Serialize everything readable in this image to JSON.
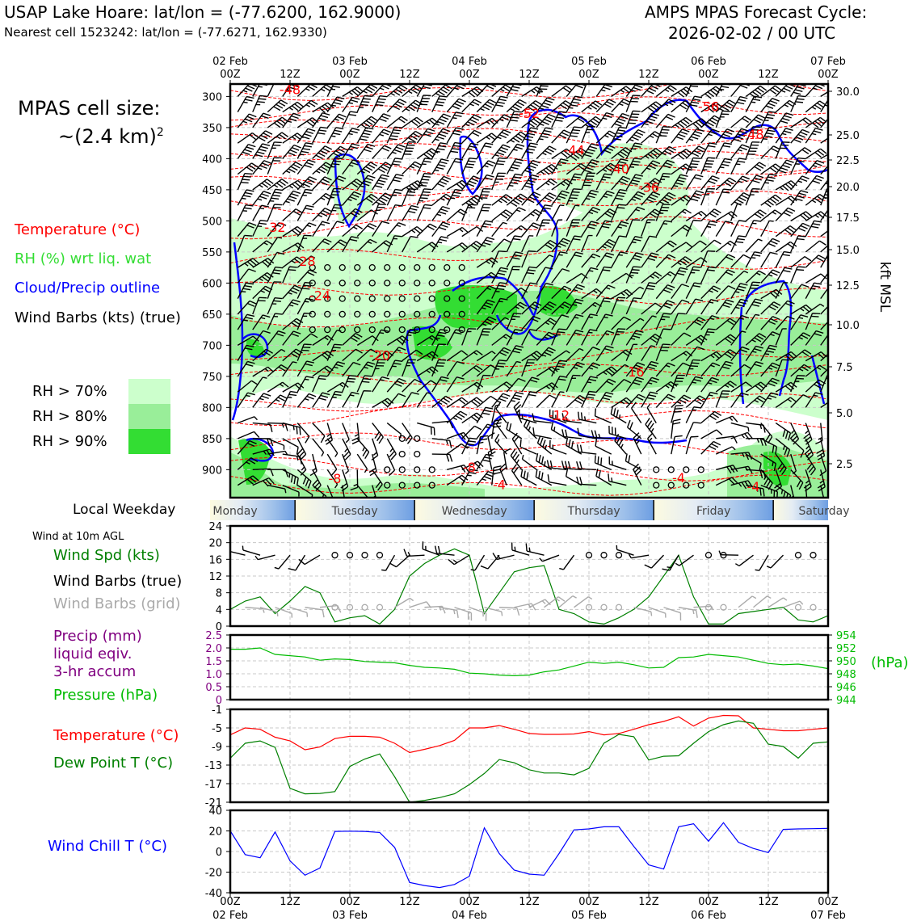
{
  "header": {
    "station": "USAP Lake Hoare: lat/lon = (-77.6200, 162.9000)",
    "nearest": "Nearest cell 1523242: lat/lon = (-77.6271, 162.9330)",
    "cycle_label": "AMPS MPAS Forecast Cycle:",
    "cycle_value": "2026-02-02 / 00 UTC"
  },
  "cell_size": {
    "line1": "MPAS cell size:",
    "line2": "~(2.4 km)",
    "sup": "2"
  },
  "legend": {
    "temperature": "Temperature (°C)",
    "rh": "RH (%) wrt liq. wat",
    "cloud": "Cloud/Precip outline",
    "wind": "Wind Barbs (kts) (true)",
    "rh70": "RH > 70%",
    "rh80": "RH > 80%",
    "rh90": "RH > 90%"
  },
  "colors": {
    "temperature": "#ff0000",
    "rh_text": "#33dd33",
    "cloud": "#0000ff",
    "rh70": "#ccffcc",
    "rh80": "#99ee99",
    "rh90": "#33dd33",
    "wind_spd": "#008000",
    "precip": "#800080",
    "pressure": "#00bb00",
    "dew": "#008000",
    "chill": "#0000ff",
    "grid_barb": "#aaaaaa"
  },
  "weekday": {
    "label": "Local Weekday",
    "days": [
      "Monday",
      "Tuesday",
      "Wednesday",
      "Thursday",
      "Friday",
      "Saturday"
    ]
  },
  "side_labels": {
    "wind10m": "Wind at 10m AGL",
    "wind_spd": "Wind Spd (kts)",
    "barbs_true": "Wind Barbs (true)",
    "barbs_grid": "Wind Barbs (grid)",
    "precip1": "Precip (mm)",
    "precip2": "liquid eqiv.",
    "precip3": "3-hr accum",
    "pressure": "Pressure (hPa)",
    "temperature": "Temperature (°C)",
    "dewpoint": "Dew Point T (°C)",
    "windchill": "Wind Chill T (°C)",
    "hpa_unit": "(hPa)",
    "kft": "kft MSL"
  },
  "time_axis": {
    "ticks": [
      "00Z",
      "12Z",
      "00Z",
      "12Z",
      "00Z",
      "12Z",
      "00Z",
      "12Z",
      "00Z",
      "12Z",
      "00Z"
    ],
    "dates": [
      "02 Feb",
      "03 Feb",
      "04 Feb",
      "05 Feb",
      "06 Feb",
      "07 Feb"
    ]
  },
  "chart_data": [
    {
      "type": "heatmap",
      "name": "time-height cross section",
      "yaxis_left": {
        "label": "",
        "ticks": [
          300,
          350,
          400,
          450,
          500,
          550,
          600,
          650,
          700,
          750,
          800,
          850,
          900
        ],
        "unit": "hPa",
        "range": [
          945,
          280
        ]
      },
      "yaxis_right": {
        "label": "kft MSL",
        "ticks": [
          30.0,
          25.0,
          22.5,
          20.0,
          17.5,
          15.0,
          12.5,
          10.0,
          7.5,
          5.0,
          2.5
        ]
      },
      "temperature_labels": [
        {
          "value": "-48",
          "hour": 12,
          "p": 290
        },
        {
          "value": "-52",
          "hour": 60,
          "p": 328
        },
        {
          "value": "-56",
          "hour": 96,
          "p": 317
        },
        {
          "value": "-48",
          "hour": 105,
          "p": 362
        },
        {
          "value": "-44",
          "hour": 69,
          "p": 387
        },
        {
          "value": "-40",
          "hour": 78,
          "p": 417
        },
        {
          "value": "-36",
          "hour": 84,
          "p": 447
        },
        {
          "value": "-32",
          "hour": 9,
          "p": 511
        },
        {
          "value": "-28",
          "hour": 15,
          "p": 566
        },
        {
          "value": "-24",
          "hour": 18,
          "p": 621
        },
        {
          "value": "-20",
          "hour": 30,
          "p": 717
        },
        {
          "value": "-16",
          "hour": 81,
          "p": 744
        },
        {
          "value": "-12",
          "hour": 66,
          "p": 813
        },
        {
          "value": "-8",
          "hour": 21,
          "p": 915
        },
        {
          "value": "-8",
          "hour": 48,
          "p": 897
        },
        {
          "value": "-4",
          "hour": 54,
          "p": 925
        },
        {
          "value": "-4",
          "hour": 90,
          "p": 914
        },
        {
          "value": "-4",
          "hour": 105,
          "p": 928
        }
      ]
    },
    {
      "type": "line",
      "name": "wind speed",
      "ylim": [
        0,
        24
      ],
      "yticks": [
        0,
        4,
        8,
        12,
        16,
        20,
        24
      ],
      "x_hours": [
        0,
        3,
        6,
        9,
        12,
        15,
        18,
        21,
        24,
        27,
        30,
        33,
        36,
        39,
        42,
        45,
        48,
        51,
        54,
        57,
        60,
        63,
        66,
        69,
        72,
        75,
        78,
        81,
        84,
        87,
        90,
        93,
        96,
        99,
        102,
        105,
        108,
        111,
        114,
        117,
        120
      ],
      "series": [
        {
          "name": "Wind Spd (kts)",
          "values": [
            4,
            6,
            7,
            3,
            6,
            9.5,
            8,
            1,
            2,
            2.5,
            0.5,
            4,
            12,
            15,
            17,
            18.5,
            17,
            3,
            8,
            13,
            14,
            14.5,
            4,
            3,
            1,
            0.5,
            2,
            4,
            7,
            12,
            17,
            7,
            0.5,
            0.5,
            3,
            3.5,
            4,
            4.5,
            1.5,
            1,
            2.5
          ]
        }
      ]
    },
    {
      "type": "line",
      "name": "pressure and precip",
      "ylim_left": [
        0,
        2.5
      ],
      "yticks_left": [
        0,
        0.5,
        1.0,
        1.5,
        2.0,
        2.5
      ],
      "ylim_right": [
        944,
        954
      ],
      "yticks_right": [
        944,
        946,
        948,
        950,
        952,
        954
      ],
      "x_hours": [
        0,
        3,
        6,
        9,
        12,
        15,
        18,
        21,
        24,
        27,
        30,
        33,
        36,
        39,
        42,
        45,
        48,
        51,
        54,
        57,
        60,
        63,
        66,
        69,
        72,
        75,
        78,
        81,
        84,
        87,
        90,
        93,
        96,
        99,
        102,
        105,
        108,
        111,
        114,
        117,
        120
      ],
      "series": [
        {
          "name": "Pressure (hPa)",
          "values": [
            951.8,
            951.8,
            952.0,
            951.0,
            950.8,
            950.6,
            950.1,
            950.3,
            950.2,
            949.9,
            949.8,
            949.7,
            949.3,
            949.0,
            948.9,
            948.7,
            948.1,
            948.0,
            947.8,
            947.7,
            947.8,
            948.3,
            948.6,
            949.2,
            949.8,
            949.6,
            949.8,
            949.4,
            948.9,
            949.0,
            950.5,
            950.6,
            951.0,
            950.8,
            950.6,
            950.1,
            949.6,
            949.4,
            949.5,
            949.2,
            948.8
          ]
        }
      ]
    },
    {
      "type": "line",
      "name": "temperature and dew point",
      "ylim": [
        -21,
        -1
      ],
      "yticks": [
        -1,
        -5,
        -9,
        -13,
        -17,
        -21
      ],
      "x_hours": [
        0,
        3,
        6,
        9,
        12,
        15,
        18,
        21,
        24,
        27,
        30,
        33,
        36,
        39,
        42,
        45,
        48,
        51,
        54,
        57,
        60,
        63,
        66,
        69,
        72,
        75,
        78,
        81,
        84,
        87,
        90,
        93,
        96,
        99,
        102,
        105,
        108,
        111,
        114,
        117,
        120
      ],
      "series": [
        {
          "name": "Temperature (°C)",
          "values": [
            -6.5,
            -5,
            -5.3,
            -7,
            -7.8,
            -9.7,
            -9.1,
            -7.3,
            -6.8,
            -6.8,
            -7,
            -8.3,
            -10.3,
            -9.6,
            -8.8,
            -7.7,
            -5,
            -5,
            -4.5,
            -5.3,
            -6.2,
            -6.4,
            -6.4,
            -6.3,
            -5.8,
            -6.5,
            -6.2,
            -5.3,
            -4.3,
            -3.6,
            -2.6,
            -4.6,
            -2.9,
            -2.3,
            -2.4,
            -5,
            -5.3,
            -5.6,
            -5.6,
            -5.3,
            -5
          ]
        },
        {
          "name": "Dew Point T (°C)",
          "values": [
            -11.5,
            -8.3,
            -7.8,
            -9.2,
            -18,
            -19.2,
            -19.1,
            -18.7,
            -13.3,
            -11.7,
            -10.6,
            -15.5,
            -21,
            -20.6,
            -20,
            -19.2,
            -17.2,
            -14.8,
            -11.8,
            -12.5,
            -14,
            -14.7,
            -14.7,
            -15.1,
            -13.7,
            -8.3,
            -6.4,
            -6.9,
            -11.9,
            -11.1,
            -11,
            -8.3,
            -5.8,
            -4.3,
            -3.5,
            -4,
            -8.5,
            -9,
            -11.5,
            -8.3,
            -8
          ]
        }
      ]
    },
    {
      "type": "line",
      "name": "wind chill",
      "ylim": [
        -40,
        40
      ],
      "yticks": [
        -40,
        -20,
        0,
        20,
        40
      ],
      "x_hours": [
        0,
        3,
        6,
        9,
        12,
        15,
        18,
        21,
        24,
        27,
        30,
        33,
        36,
        39,
        42,
        45,
        48,
        51,
        54,
        57,
        60,
        63,
        66,
        69,
        72,
        75,
        78,
        81,
        84,
        87,
        90,
        93,
        96,
        99,
        102,
        105,
        108,
        111,
        114,
        117,
        120
      ],
      "series": [
        {
          "name": "Wind Chill T (°C)",
          "values": [
            20,
            -3,
            -6,
            19,
            -9,
            -23,
            -16,
            19.5,
            19.8,
            19.5,
            18.5,
            4,
            -30,
            -33,
            -35,
            -32,
            -24,
            23,
            -2,
            -18,
            -22,
            -23,
            -2,
            21,
            22,
            24,
            24,
            5,
            -13,
            -17,
            24,
            27,
            10,
            28,
            9,
            3,
            -1,
            21.5,
            22,
            22.2,
            22.5
          ]
        }
      ]
    }
  ]
}
